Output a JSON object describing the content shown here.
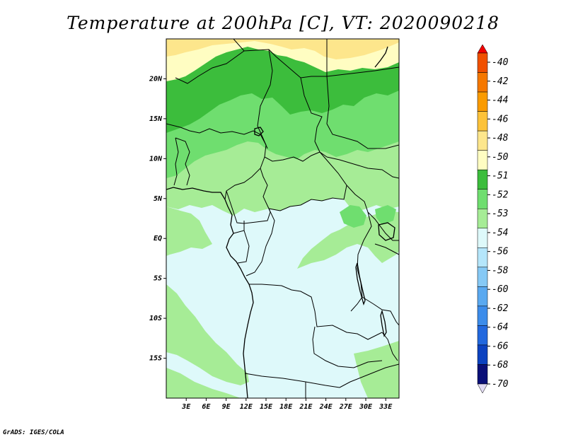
{
  "title": "Temperature at 200hPa [C], VT: 2020090218",
  "credit": "GrADS: IGES/COLA",
  "map": {
    "lon_range": [
      0,
      35
    ],
    "lat_range": [
      -20,
      25
    ],
    "x_ticks": [
      "3E",
      "6E",
      "9E",
      "12E",
      "15E",
      "18E",
      "21E",
      "24E",
      "27E",
      "30E",
      "33E"
    ],
    "y_ticks": [
      "20N",
      "15N",
      "10N",
      "5N",
      "EQ",
      "5S",
      "10S",
      "15S"
    ]
  },
  "colorbar": {
    "labels": [
      "-40",
      "-42",
      "-44",
      "-46",
      "-48",
      "-50",
      "-51",
      "-52",
      "-53",
      "-54",
      "-56",
      "-58",
      "-60",
      "-62",
      "-64",
      "-66",
      "-68",
      "-70"
    ],
    "colors": [
      "#f00000",
      "#f05000",
      "#f57800",
      "#fa9b00",
      "#fcc23a",
      "#fde68c",
      "#fffdc2",
      "#3cbd3c",
      "#6fde6f",
      "#a6ec96",
      "#def9fa",
      "#b5e6fb",
      "#86c9f5",
      "#5aa9f0",
      "#3c8cea",
      "#2268de",
      "#0c42c0",
      "#0a0f78",
      "#e2dcf4"
    ]
  },
  "field_colors": {
    "yellow": "#fde68c",
    "pale_yellow": "#fffdc2",
    "dark_green": "#3cbd3c",
    "mid_green": "#6fde6f",
    "light_green": "#a6ec96",
    "pale_cyan": "#def9fa"
  }
}
